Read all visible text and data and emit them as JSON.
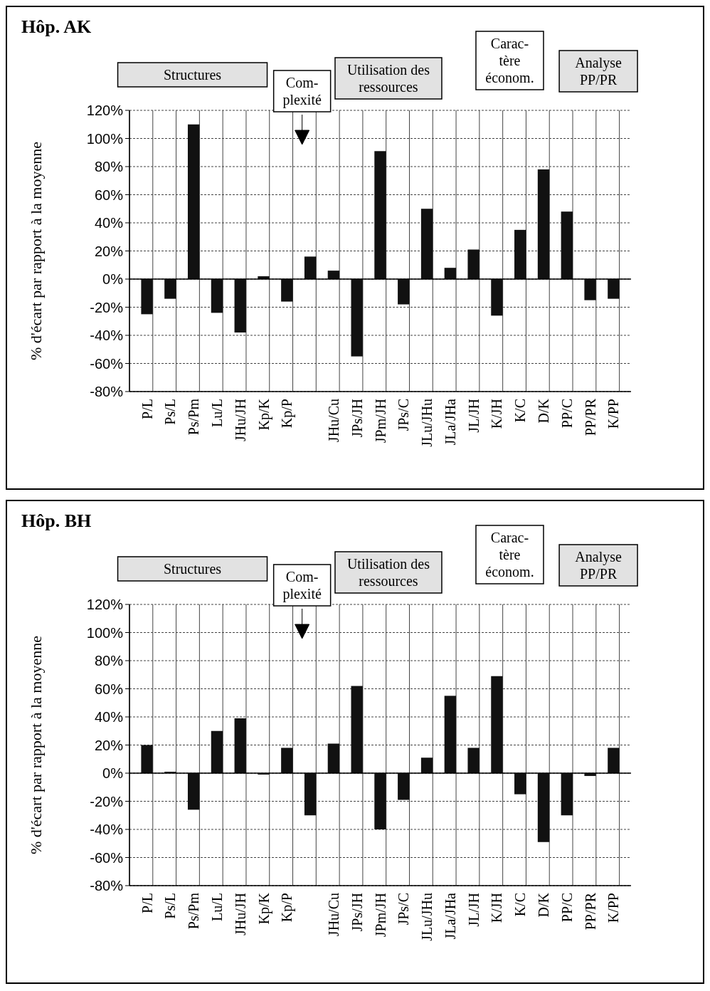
{
  "chart_data": [
    {
      "type": "bar",
      "title": "Hôp. AK",
      "ylabel": "% d'écart par rapport à la moyenne",
      "categories": [
        "P/L",
        "Ps/L",
        "Ps/Pm",
        "Lu/L",
        "JHu/JH",
        "Kp/K",
        "Kp/P",
        null,
        "JHu/Cu",
        "JPs/JH",
        "JPm/JH",
        "JPs/C",
        "JLu/JHu",
        "JLa/JHa",
        "JL/JH",
        "K/JH",
        "K/C",
        "D/K",
        "PP/C",
        "PP/PR",
        "K/PP"
      ],
      "values": [
        -25,
        -14,
        110,
        -24,
        -38,
        2,
        -16,
        16,
        6,
        -55,
        91,
        -18,
        50,
        8,
        21,
        -26,
        35,
        78,
        48,
        -15,
        -14
      ],
      "color": "#111111",
      "ylim": [
        -80,
        120
      ],
      "yticks": [
        {
          "value": -80,
          "label": "-80%"
        },
        {
          "value": -60,
          "label": "-60%"
        },
        {
          "value": -40,
          "label": "-40%"
        },
        {
          "value": -20,
          "label": "-20%"
        },
        {
          "value": 0,
          "label": "0%"
        },
        {
          "value": 20,
          "label": "20%"
        },
        {
          "value": 40,
          "label": "40%"
        },
        {
          "value": 60,
          "label": "60%"
        },
        {
          "value": 80,
          "label": "80%"
        },
        {
          "value": 100,
          "label": "100%"
        },
        {
          "value": 120,
          "label": "120%"
        }
      ],
      "grid": true,
      "annotations": [
        "Structures",
        "Com-plexité",
        "Utilisation des ressources",
        "Carac-tère économ.",
        "Analyse PP/PR"
      ]
    },
    {
      "type": "bar",
      "title": "Hôp. BH",
      "ylabel": "% d'écart par rapport à la moyenne",
      "categories": [
        "P/L",
        "Ps/L",
        "Ps/Pm",
        "Lu/L",
        "JHu/JH",
        "Kp/K",
        "Kp/P",
        null,
        "JHu/Cu",
        "JPs/JH",
        "JPm/JH",
        "JPs/C",
        "JLu/JHu",
        "JLa/JHa",
        "JL/JH",
        "K/JH",
        "K/C",
        "D/K",
        "PP/C",
        "PP/PR",
        "K/PP"
      ],
      "values": [
        20,
        1,
        -26,
        30,
        39,
        -1,
        18,
        -30,
        21,
        62,
        -40,
        -19,
        11,
        55,
        18,
        69,
        -15,
        -49,
        -30,
        -2,
        18
      ],
      "color": "#111111",
      "ylim": [
        -80,
        120
      ],
      "yticks": [
        {
          "value": -80,
          "label": "-80%"
        },
        {
          "value": -60,
          "label": "-60%"
        },
        {
          "value": -40,
          "label": "-40%"
        },
        {
          "value": -20,
          "label": "-20%"
        },
        {
          "value": 0,
          "label": "0%"
        },
        {
          "value": 20,
          "label": "20%"
        },
        {
          "value": 40,
          "label": "40%"
        },
        {
          "value": 60,
          "label": "60%"
        },
        {
          "value": 80,
          "label": "80%"
        },
        {
          "value": 100,
          "label": "100%"
        },
        {
          "value": 120,
          "label": "120%"
        }
      ],
      "grid": true,
      "annotations": [
        "Structures",
        "Com-plexité",
        "Utilisation des ressources",
        "Carac-tère économ.",
        "Analyse PP/PR"
      ]
    }
  ]
}
